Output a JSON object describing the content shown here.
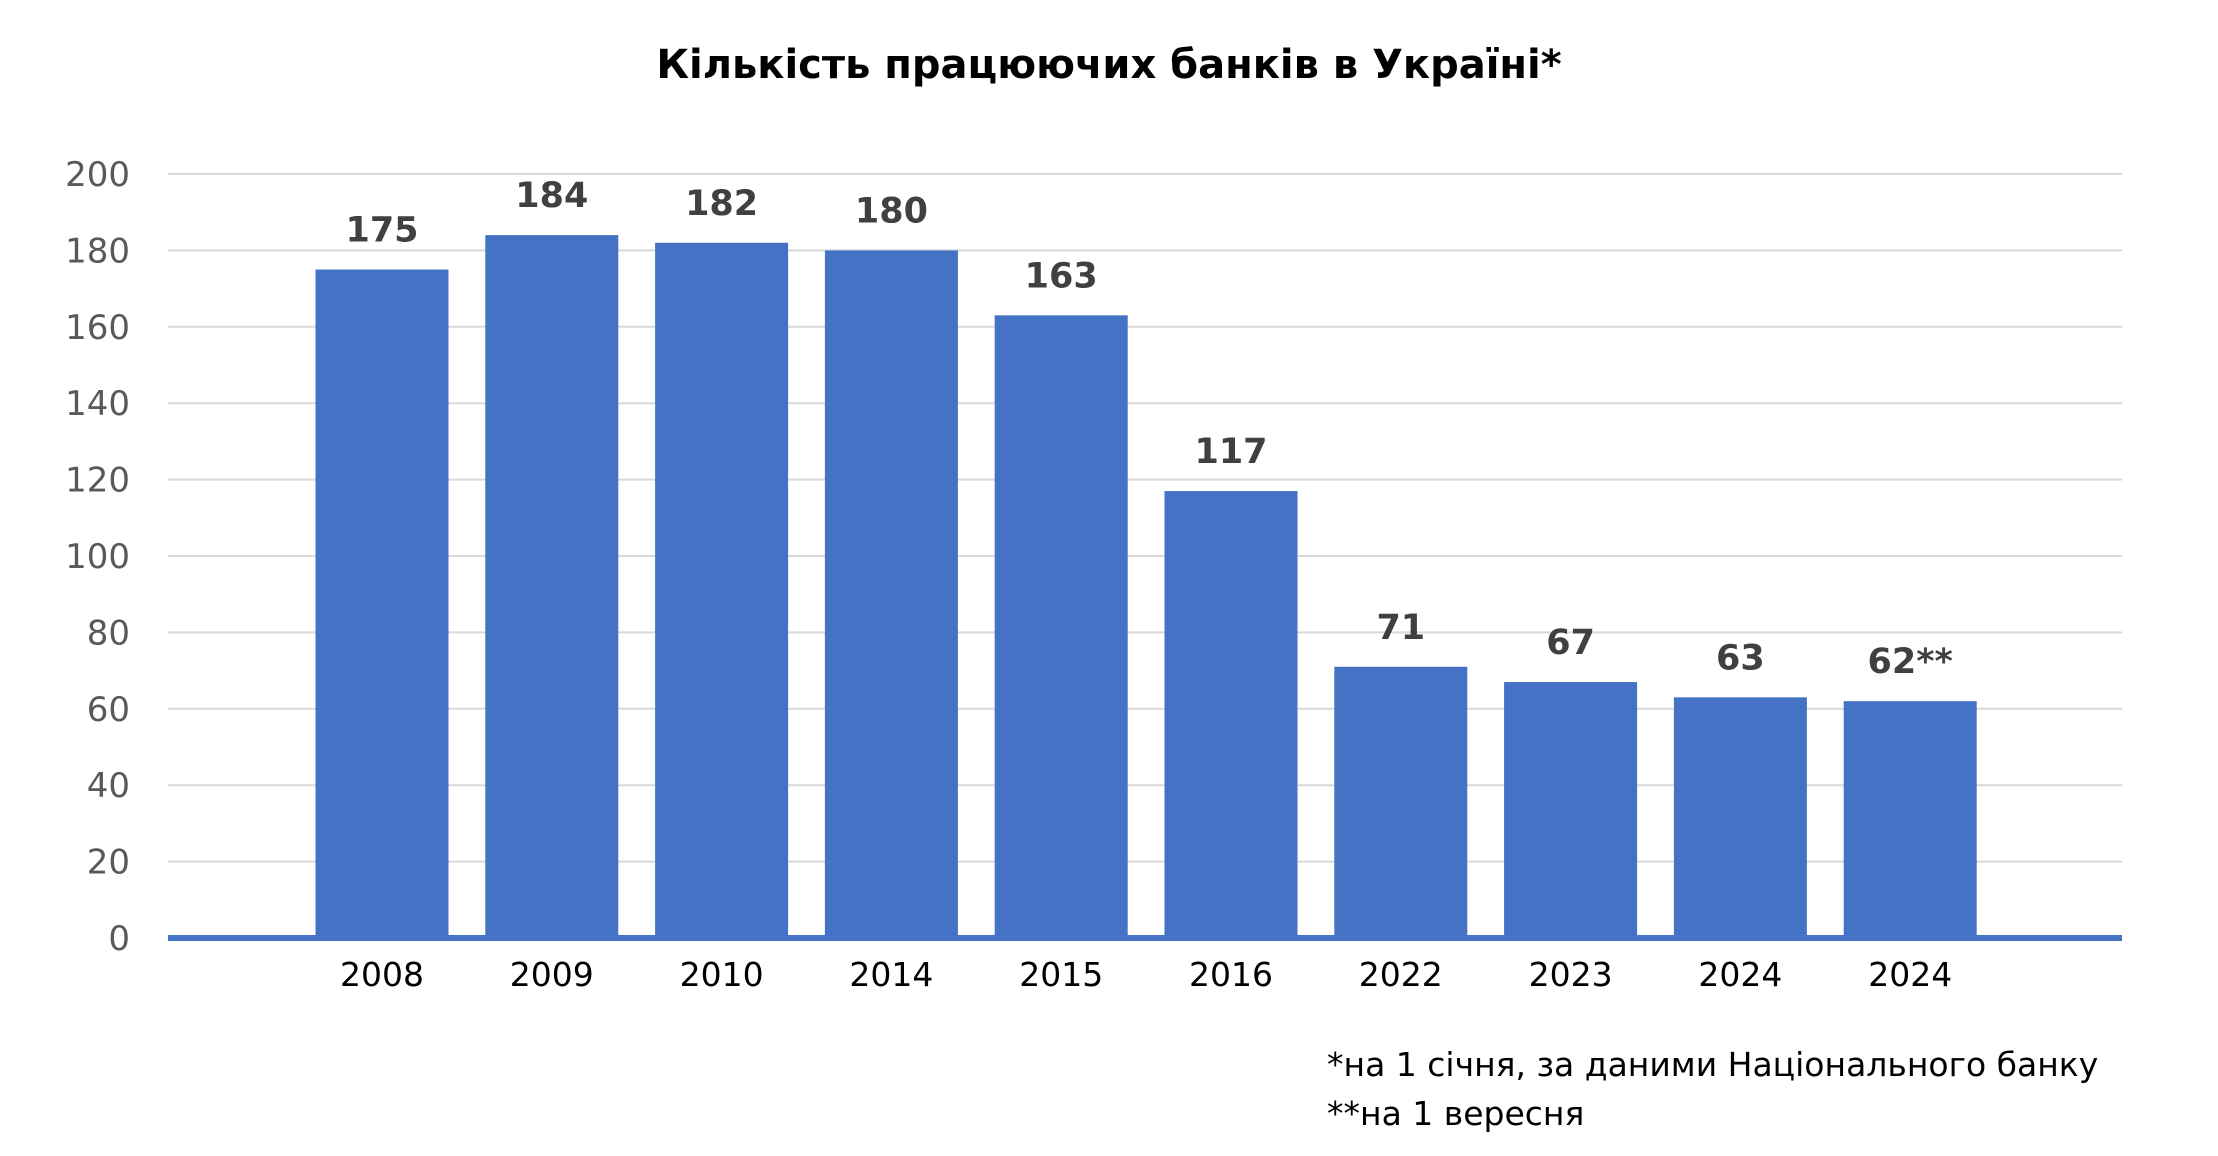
{
  "chart_data": {
    "type": "bar",
    "title": "Кількість працюючих банків в Україні*",
    "categories": [
      "2008",
      "2009",
      "2010",
      "2014",
      "2015",
      "2016",
      "2022",
      "2023",
      "2024",
      "2024"
    ],
    "values": [
      175,
      184,
      182,
      180,
      163,
      117,
      71,
      67,
      63,
      62
    ],
    "data_labels": [
      "175",
      "184",
      "182",
      "180",
      "163",
      "117",
      "71",
      "67",
      "63",
      "62**"
    ],
    "xlabel": "",
    "ylabel": "",
    "ylim": [
      0,
      200
    ],
    "yticks": [
      0,
      20,
      40,
      60,
      80,
      100,
      120,
      140,
      160,
      180,
      200
    ],
    "grid": true,
    "legend": "none",
    "bar_color": "#4472C4",
    "axis_color": "#4472C4"
  },
  "footnotes": [
    "*на 1 січня, за даними Національного банку",
    "**на 1 вересня"
  ]
}
